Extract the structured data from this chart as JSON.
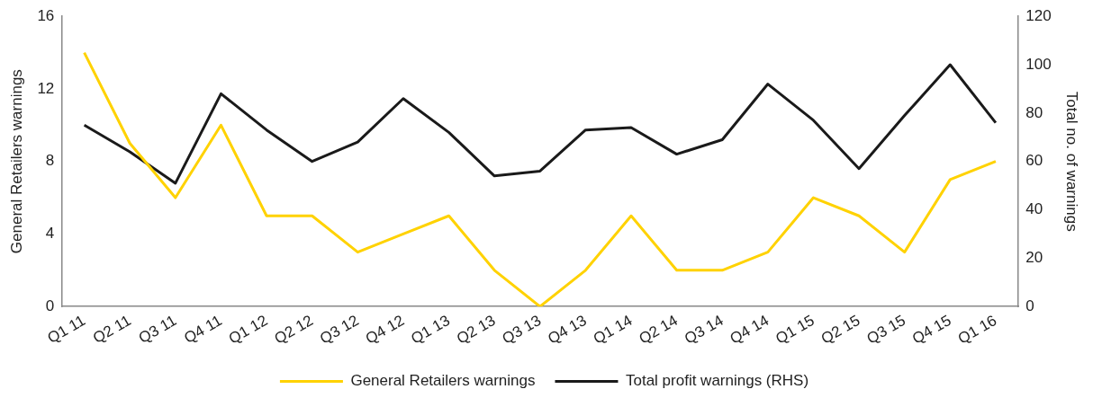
{
  "chart_data": {
    "type": "line",
    "categories": [
      "Q1 11",
      "Q2 11",
      "Q3 11",
      "Q4 11",
      "Q1 12",
      "Q2 12",
      "Q3 12",
      "Q4 12",
      "Q1 13",
      "Q2 13",
      "Q3 13",
      "Q4 13",
      "Q1 14",
      "Q2 14",
      "Q3 14",
      "Q4 14",
      "Q1 15",
      "Q2 15",
      "Q3 15",
      "Q4 15",
      "Q1 16"
    ],
    "series": [
      {
        "name": "General Retailers warnings",
        "color": "#ffd200",
        "values": [
          14,
          9,
          6,
          10,
          5,
          5,
          3,
          4,
          5,
          2,
          0,
          2,
          5,
          2,
          2,
          3,
          6,
          5,
          3,
          7,
          8
        ]
      },
      {
        "name": "Total profit warnings (RHS)",
        "color": "#1a1a1a",
        "axis": "y2",
        "values": [
          75,
          64,
          51,
          88,
          73,
          60,
          68,
          86,
          72,
          54,
          56,
          73,
          74,
          63,
          69,
          92,
          77,
          57,
          79,
          100,
          76
        ]
      }
    ],
    "ylabel": "General Retailers warnings",
    "y2label": "Total no. of warnings",
    "ylim": [
      0,
      16
    ],
    "yticks": [
      0,
      4,
      8,
      12,
      16
    ],
    "y2lim": [
      0,
      120
    ],
    "y2ticks": [
      0,
      20,
      40,
      60,
      80,
      100,
      120
    ],
    "grid": false,
    "legend": "bottom",
    "marker": "none",
    "line_style": "solid"
  }
}
